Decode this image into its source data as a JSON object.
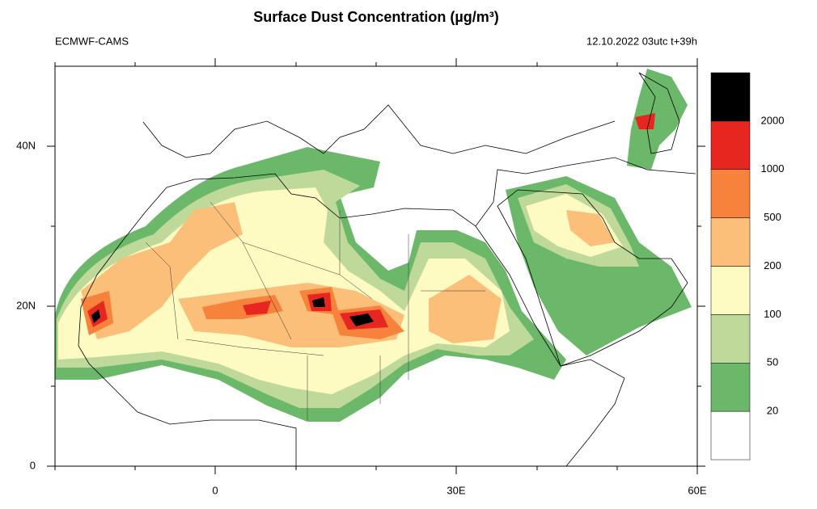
{
  "header": {
    "title": "Surface Dust Concentration (µg/m³)",
    "left_label": "ECMWF-CAMS",
    "right_label": "12.10.2022 03utc t+39h"
  },
  "map": {
    "lat_labels": [
      "40N",
      "20N",
      "0"
    ],
    "lon_labels": [
      "0",
      "30E",
      "60E"
    ]
  },
  "colorbar": {
    "levels": [
      20,
      50,
      100,
      200,
      500,
      1000,
      2000
    ],
    "colors": [
      "#ffffff",
      "#6cb86a",
      "#bed99a",
      "#fdfac2",
      "#fcbf7a",
      "#f7823c",
      "#e6261f",
      "#000000"
    ]
  }
}
